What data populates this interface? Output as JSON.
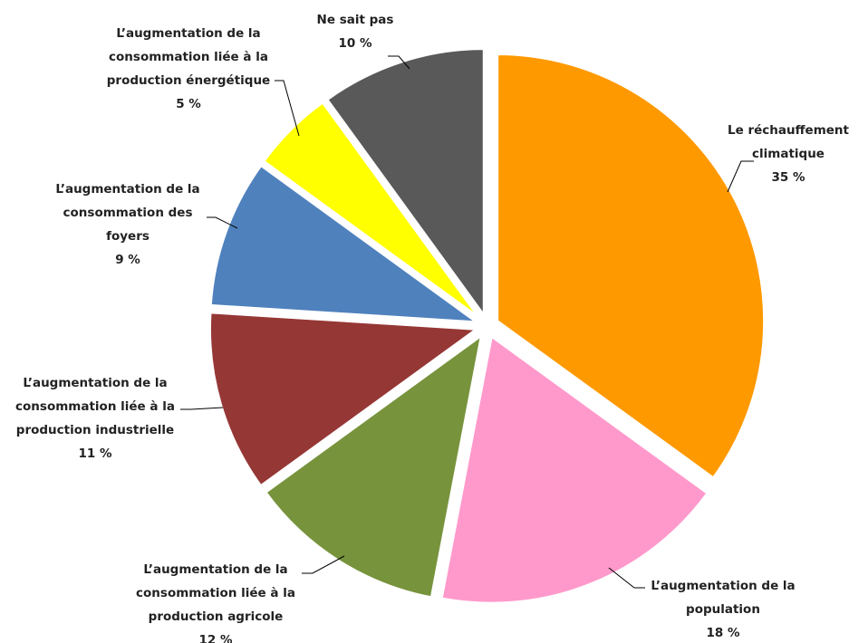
{
  "chart_data": {
    "type": "pie",
    "title": "",
    "categories": [
      "Le réchauffement climatique",
      "L’augmentation de la population",
      "L’augmentation de la consommation liée à la production agricole",
      "L’augmentation de la consommation liée à la production industrielle",
      "L’augmentation de la consommation des foyers",
      "L’augmentation de la consommation liée à la production énergétique",
      "Ne sait pas"
    ],
    "values": [
      35,
      18,
      12,
      11,
      9,
      5,
      10
    ],
    "unit": "%",
    "colors": [
      "#FF9900",
      "#FF99CC",
      "#77933C",
      "#953735",
      "#4F81BD",
      "#FFFF00",
      "#595959"
    ],
    "labels": [
      {
        "lines": [
          "Le réchauffement",
          "climatique"
        ],
        "pct": "35 %"
      },
      {
        "lines": [
          "L’augmentation de la",
          "population"
        ],
        "pct": "18 %"
      },
      {
        "lines": [
          "L’augmentation de la",
          "consommation liée à la",
          "production agricole"
        ],
        "pct": "12 %"
      },
      {
        "lines": [
          "L’augmentation de la",
          "consommation liée à la",
          "production industrielle"
        ],
        "pct": "11 %"
      },
      {
        "lines": [
          "L’augmentation de la",
          "consommation des",
          "foyers"
        ],
        "pct": "9 %"
      },
      {
        "lines": [
          "L’augmentation de la",
          "consommation liée à la",
          "production énergétique"
        ],
        "pct": "5 %"
      },
      {
        "lines": [
          "Ne sait pas"
        ],
        "pct": "10 %"
      }
    ],
    "legend": "none",
    "exploded": true
  }
}
